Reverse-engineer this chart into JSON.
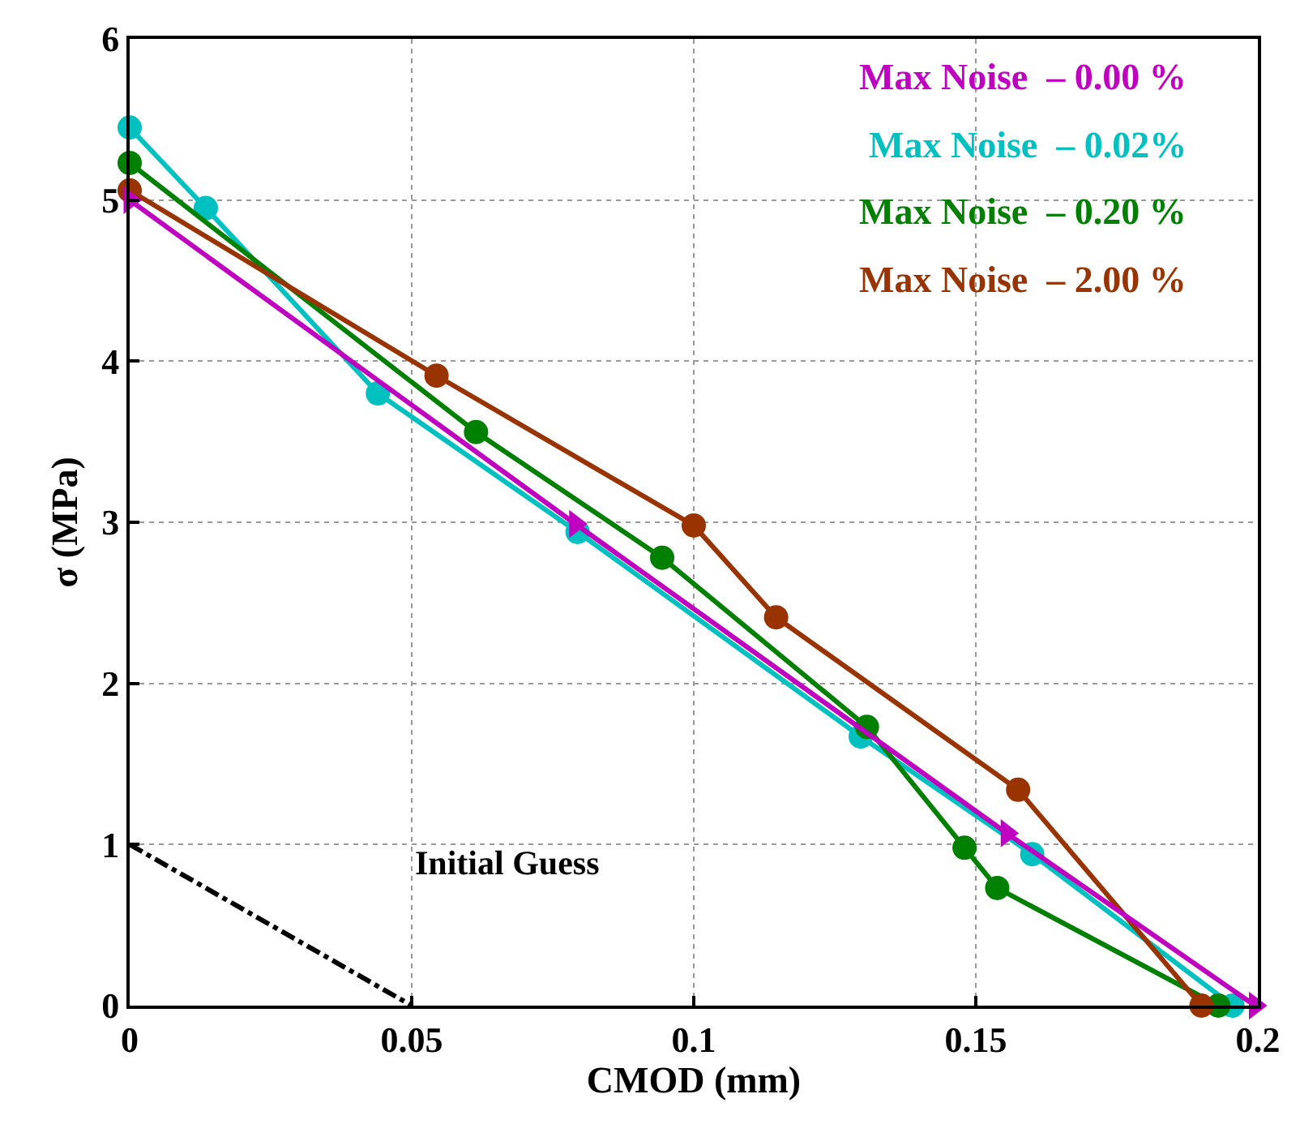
{
  "chart_data": {
    "type": "line",
    "xlabel": "CMOD (mm)",
    "ylabel": "σ (MPa)",
    "xlim": [
      0,
      0.2
    ],
    "ylim": [
      0,
      6
    ],
    "xticks": [
      0,
      0.05,
      0.1,
      0.15,
      0.2
    ],
    "yticks": [
      0,
      1,
      2,
      3,
      4,
      5,
      6
    ],
    "grid": true,
    "legend": "top right",
    "line_style": "solid",
    "series": [
      {
        "name": "Max Noise  – 0.00 %",
        "color": "#c000c0",
        "marker": "triangle",
        "x": [
          0,
          0.079,
          0.1555,
          0.1995
        ],
        "values": [
          5.0,
          2.99,
          1.07,
          0
        ]
      },
      {
        "name": "Max Noise  – 0.02%",
        "color": "#00c0c0",
        "marker": "circle",
        "x": [
          0,
          0.0135,
          0.044,
          0.0794,
          0.1296,
          0.16,
          0.1955
        ],
        "values": [
          5.45,
          4.95,
          3.8,
          2.94,
          1.67,
          0.94,
          0
        ]
      },
      {
        "name": "Max Noise  – 0.20 %",
        "color": "#008000",
        "marker": "circle",
        "x": [
          0,
          0.0614,
          0.0944,
          0.1307,
          0.148,
          0.1538,
          0.193
        ],
        "values": [
          5.23,
          3.56,
          2.78,
          1.73,
          0.98,
          0.73,
          0
        ]
      },
      {
        "name": "Max Noise  – 2.00 %",
        "color": "#993300",
        "marker": "circle",
        "x": [
          0,
          0.0544,
          0.1,
          0.1146,
          0.1575,
          0.19
        ],
        "values": [
          5.06,
          3.91,
          2.98,
          2.41,
          1.34,
          0
        ]
      },
      {
        "name": "Initial Guess",
        "color": "#000000",
        "marker": "none",
        "line_style": "dashdot",
        "x": [
          0,
          0.05
        ],
        "values": [
          1,
          0
        ]
      }
    ]
  }
}
